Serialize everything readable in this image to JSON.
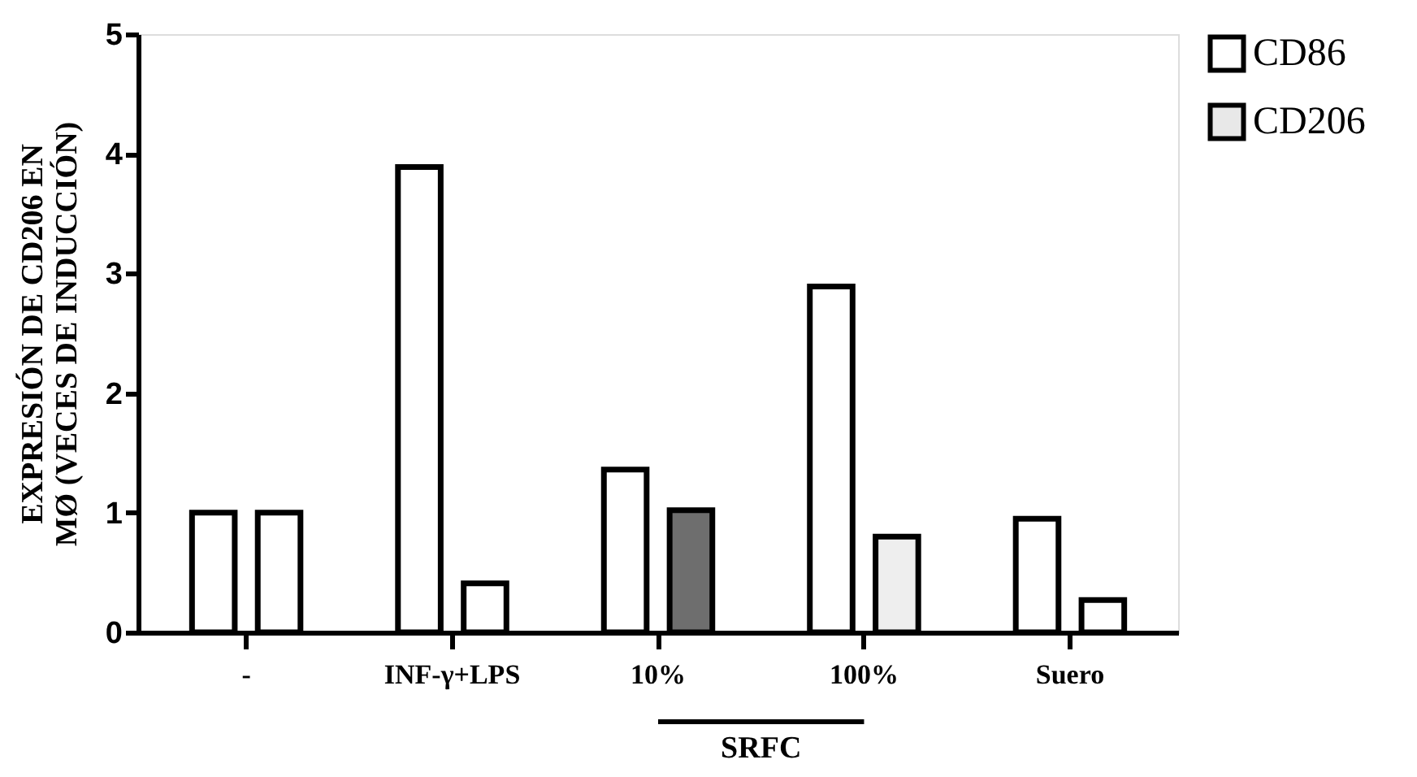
{
  "chart_data": {
    "type": "bar",
    "ylabel": "EXPRESIÓN DE CD206 EN\nMØ (VECES DE INDUCCIÓN)",
    "categories": [
      "-",
      "INF-γ+LPS",
      "10%",
      "100%",
      "Suero"
    ],
    "series": [
      {
        "name": "CD86",
        "color": "#ffffff",
        "colors": [
          "#ffffff",
          "#ffffff",
          "#ffffff",
          "#ffffff",
          "#ffffff"
        ],
        "values": [
          1.0,
          3.89,
          1.36,
          2.89,
          0.95
        ]
      },
      {
        "name": "CD206",
        "color": "#e8e8e8",
        "colors": [
          "#ffffff",
          "#ffffff",
          "#6e6e6e",
          "#eeeeee",
          "#ffffff"
        ],
        "values": [
          1.0,
          0.41,
          1.02,
          0.8,
          0.27
        ]
      }
    ],
    "ylim": [
      0,
      5
    ],
    "yticks": [
      0,
      1,
      2,
      3,
      4,
      5
    ],
    "annotations": [
      "SRFC"
    ],
    "grid": false,
    "legend": "top right"
  }
}
